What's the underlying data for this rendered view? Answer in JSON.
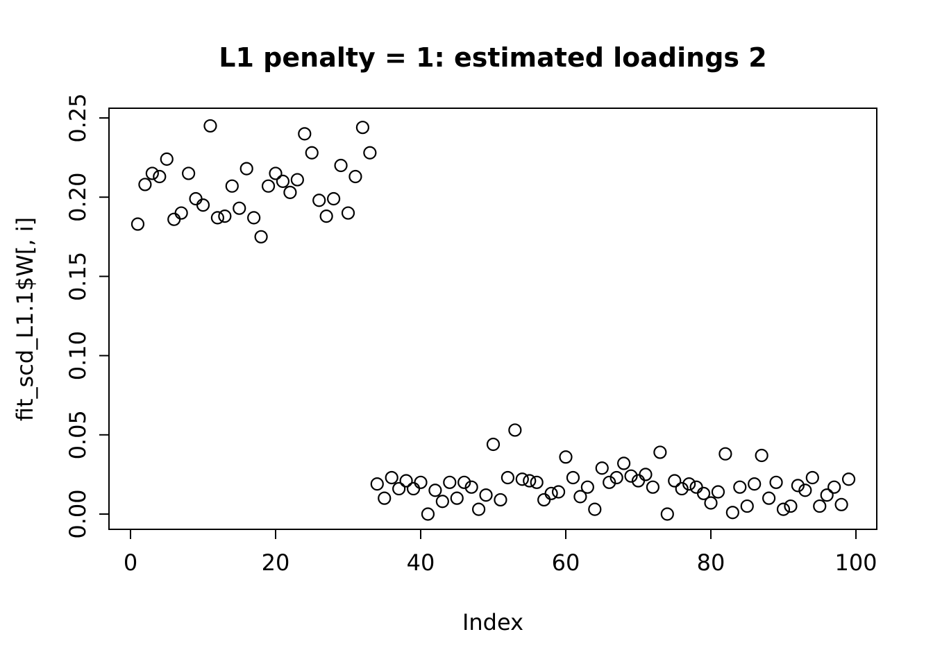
{
  "figure": {
    "background_color": "#FFFFFF",
    "foreground_color": "#000000"
  },
  "chart_data": {
    "type": "scatter",
    "title": "L1 penalty = 1: estimated loadings 2",
    "xlabel": "Index",
    "ylabel": "fit_scd_L1.1$W[, i]",
    "marker": "open-circle",
    "marker_color": "#000000",
    "grid": false,
    "legend": "none",
    "xlim": [
      0,
      100
    ],
    "ylim": [
      0.0,
      0.25
    ],
    "x_ticks": [
      0,
      20,
      40,
      60,
      80,
      100
    ],
    "x_tick_labels": [
      "0",
      "20",
      "40",
      "60",
      "80",
      "100"
    ],
    "y_ticks": [
      0.0,
      0.05,
      0.1,
      0.15,
      0.2,
      0.25
    ],
    "y_tick_labels": [
      "0.00",
      "0.05",
      "0.10",
      "0.15",
      "0.20",
      "0.25"
    ],
    "x_start_index": 1,
    "n_points": 99,
    "values": [
      0.183,
      0.208,
      0.215,
      0.213,
      0.224,
      0.186,
      0.19,
      0.215,
      0.199,
      0.195,
      0.245,
      0.187,
      0.188,
      0.207,
      0.193,
      0.218,
      0.187,
      0.175,
      0.207,
      0.215,
      0.21,
      0.203,
      0.211,
      0.24,
      0.228,
      0.198,
      0.188,
      0.199,
      0.22,
      0.19,
      0.213,
      0.244,
      0.228,
      0.019,
      0.01,
      0.023,
      0.016,
      0.021,
      0.016,
      0.02,
      0.0,
      0.015,
      0.008,
      0.02,
      0.01,
      0.02,
      0.017,
      0.003,
      0.012,
      0.044,
      0.009,
      0.023,
      0.053,
      0.022,
      0.021,
      0.02,
      0.009,
      0.013,
      0.014,
      0.036,
      0.023,
      0.011,
      0.017,
      0.003,
      0.029,
      0.02,
      0.023,
      0.032,
      0.024,
      0.021,
      0.025,
      0.017,
      0.039,
      0.0,
      0.021,
      0.016,
      0.019,
      0.017,
      0.013,
      0.007,
      0.014,
      0.038,
      0.001,
      0.017,
      0.005,
      0.019,
      0.037,
      0.01,
      0.02,
      0.003,
      0.005,
      0.018,
      0.015,
      0.023,
      0.005,
      0.012,
      0.017,
      0.006,
      0.022
    ]
  }
}
